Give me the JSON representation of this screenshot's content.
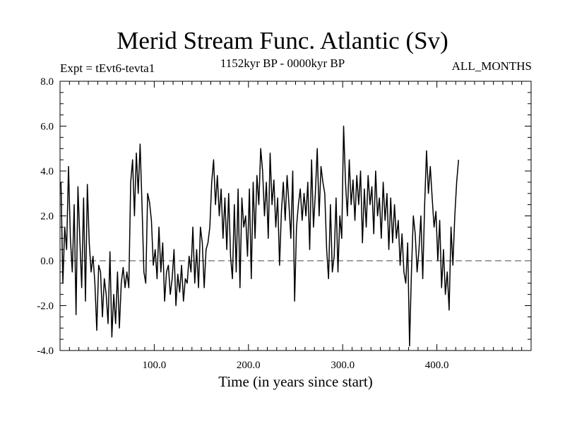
{
  "chart_data": {
    "type": "line",
    "title": "Merid Stream Func. Atlantic (Sv)",
    "subtitle": "1152kyr BP - 0000kyr BP",
    "left_annotation": "Expt = tEvt6-tevta1",
    "right_annotation": "ALL_MONTHS",
    "xlabel": "Time (in years since start)",
    "ylabel": "",
    "xlim": [
      0,
      500
    ],
    "ylim": [
      -4.0,
      8.0
    ],
    "x_ticks": [
      100,
      200,
      300,
      400
    ],
    "x_tick_labels": [
      "100.0",
      "200.0",
      "300.0",
      "400.0"
    ],
    "y_ticks": [
      -4,
      -2,
      0,
      2,
      4,
      6,
      8
    ],
    "y_tick_labels": [
      "-4.0",
      "-2.0",
      "0.0",
      "2.0",
      "4.0",
      "6.0",
      "8.0"
    ],
    "reference_line": {
      "y": 0,
      "style": "dashed"
    },
    "series": [
      {
        "name": "Merid Stream Func. Atlantic",
        "color": "#000000",
        "x_start": 1,
        "x_step": 2,
        "values": [
          3.5,
          -1.0,
          1.5,
          0.5,
          4.2,
          1.0,
          -0.5,
          2.5,
          -2.4,
          3.3,
          1.0,
          -1.2,
          2.8,
          -1.8,
          3.4,
          0.8,
          -0.5,
          0.2,
          -1.0,
          -3.1,
          -0.2,
          -0.5,
          -2.5,
          -0.8,
          -1.5,
          -2.8,
          0.4,
          -3.4,
          -1.5,
          -2.8,
          -0.5,
          -3.0,
          -1.0,
          -0.3,
          -1.2,
          -0.5,
          -1.2,
          3.5,
          4.5,
          2.0,
          4.8,
          3.0,
          5.2,
          2.5,
          -0.5,
          -1.0,
          3.0,
          2.6,
          1.8,
          -0.2,
          0.5,
          -0.8,
          1.5,
          -0.5,
          0.8,
          -1.8,
          -0.5,
          -0.2,
          -1.5,
          -0.8,
          0.5,
          -2.0,
          -0.6,
          -1.4,
          -0.2,
          -1.8,
          -0.8,
          -1.0,
          0.2,
          -0.5,
          1.5,
          -1.0,
          0.5,
          -1.2,
          1.5,
          0.8,
          -1.2,
          0.5,
          0.8,
          1.5,
          3.5,
          4.5,
          2.5,
          3.8,
          2.0,
          3.2,
          1.0,
          2.8,
          0.5,
          3.0,
          0.2,
          -0.8,
          2.5,
          -0.5,
          3.2,
          -1.2,
          2.8,
          1.5,
          2.0,
          0.2,
          3.2,
          -0.8,
          3.5,
          1.0,
          3.8,
          2.5,
          5.0,
          4.0,
          2.0,
          3.5,
          1.0,
          4.8,
          2.5,
          3.6,
          1.5,
          2.8,
          -0.2,
          2.2,
          3.5,
          1.8,
          3.8,
          2.5,
          1.0,
          4.0,
          -1.8,
          1.5,
          2.5,
          3.2,
          1.8,
          3.0,
          2.0,
          3.5,
          0.5,
          4.5,
          1.5,
          3.0,
          5.0,
          2.0,
          4.2,
          3.5,
          3.0,
          0.5,
          -0.8,
          2.5,
          -0.5,
          0.2,
          2.8,
          -0.5,
          2.0,
          1.0,
          6.0,
          3.5,
          2.0,
          4.5,
          2.5,
          3.6,
          1.8,
          3.8,
          2.5,
          4.0,
          0.8,
          3.2,
          1.5,
          3.8,
          2.5,
          3.3,
          1.2,
          4.0,
          2.0,
          2.8,
          1.0,
          3.5,
          1.8,
          3.0,
          0.5,
          2.8,
          0.8,
          2.5,
          1.0,
          1.8,
          -0.2,
          1.2,
          -0.5,
          -1.0,
          0.8,
          -3.8,
          -0.5,
          2.0,
          1.2,
          -0.5,
          0.5,
          2.0,
          -0.8,
          2.5,
          4.9,
          3.0,
          4.2,
          2.8,
          1.5,
          2.2,
          0.0,
          1.8,
          -1.2,
          0.5,
          -1.5,
          -0.5,
          -2.2,
          1.5,
          -0.2,
          2.0,
          3.5,
          4.5
        ]
      }
    ]
  }
}
